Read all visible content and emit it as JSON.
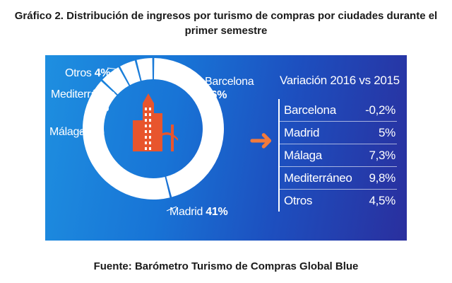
{
  "title": "Gráfico 2. Distribución de ingresos por turismo de compras por ciudades durante el primer semestre",
  "source": "Fuente: Barómetro Turismo de Compras Global Blue",
  "colors": {
    "accent_arrow": "#f27a3c",
    "donut": "#ffffff",
    "icon_orange": "#e8552d"
  },
  "icon": "city-buildings-bridge-icon",
  "chart_data": [
    {
      "type": "pie",
      "variant": "donut",
      "categories": [
        "Barcelona",
        "Madrid",
        "Málaga",
        "Mediterráneo",
        "Otros"
      ],
      "values": [
        46,
        41,
        5,
        4,
        4
      ],
      "labels": [
        {
          "name": "Barcelona",
          "value": "46%"
        },
        {
          "name": "Madrid",
          "value": "41%"
        },
        {
          "name": "Málaga",
          "value": "5%"
        },
        {
          "name": "Mediterráneo",
          "value": "4%"
        },
        {
          "name": "Otros",
          "value": "4%"
        }
      ]
    },
    {
      "type": "table",
      "title": "Variación 2016 vs 2015",
      "rows": [
        {
          "city": "Barcelona",
          "value": "-0,2%"
        },
        {
          "city": "Madrid",
          "value": "5%"
        },
        {
          "city": "Málaga",
          "value": "7,3%"
        },
        {
          "city": "Mediterráneo",
          "value": "9,8%"
        },
        {
          "city": "Otros",
          "value": "4,5%"
        }
      ]
    }
  ]
}
